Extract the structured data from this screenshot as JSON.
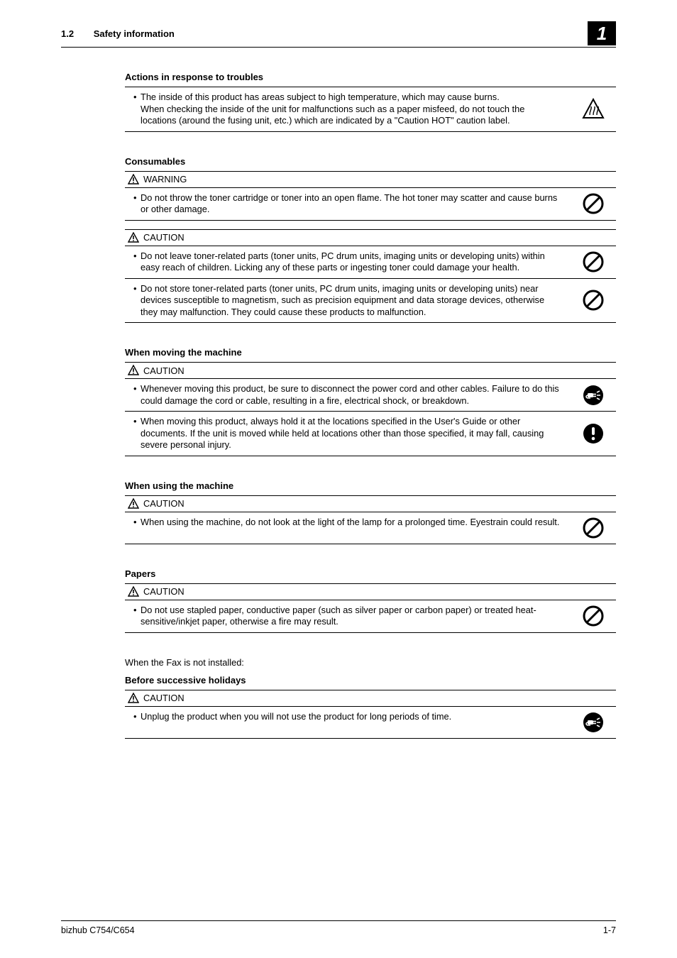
{
  "header": {
    "section_number": "1.2",
    "section_title": "Safety information",
    "chapter_number": "1"
  },
  "icons": {
    "prohibit_stroke": "#000000",
    "mandatory_fill": "#000000",
    "hot_stroke": "#000000"
  },
  "blocks": [
    {
      "title": "Actions in response to troubles",
      "sub": null,
      "rows": [
        {
          "text": "The inside of this product has areas subject to high temperature, which may cause burns.\nWhen checking the inside of the unit for malfunctions such as a paper misfeed, do not touch the locations (around the fusing unit, etc.) which are indicated by a \"Caution HOT\" caution label.",
          "icon": "hot"
        }
      ]
    },
    {
      "title": "Consumables",
      "sub": "WARNING",
      "rows": [
        {
          "text": "Do not throw the toner cartridge or toner into an open flame. The hot toner may scatter and cause burns or other damage.",
          "icon": "prohibit"
        }
      ],
      "extra_sub": "CAUTION",
      "extra_rows": [
        {
          "text": "Do not leave toner-related parts (toner units, PC drum units, imaging units or developing units) within easy reach of children. Licking any of these parts or ingesting toner could damage your health.",
          "icon": "prohibit"
        },
        {
          "text": "Do not store toner-related parts (toner units, PC drum units, imaging units or developing units) near devices susceptible to magnetism, such as precision equipment and data storage devices, otherwise they may malfunction. They could cause these products to malfunction.",
          "icon": "prohibit"
        }
      ]
    },
    {
      "title": "When moving the machine",
      "sub": "CAUTION",
      "rows": [
        {
          "text": "Whenever moving this product, be sure to disconnect the power cord and other cables. Failure to do this could damage the cord or cable, resulting in a fire, electrical shock, or breakdown.",
          "icon": "unplug"
        },
        {
          "text": "When moving this product, always hold it at the locations specified in the User's Guide or other documents. If the unit is moved while held at locations other than those specified, it may fall, causing severe personal injury.",
          "icon": "mandatory"
        }
      ]
    },
    {
      "title": "When using the machine",
      "sub": "CAUTION",
      "rows": [
        {
          "text": "When using the machine, do not look at the light of the lamp for a prolonged time. Eyestrain could result.",
          "icon": "prohibit"
        }
      ]
    },
    {
      "title": "Papers",
      "sub": "CAUTION",
      "rows": [
        {
          "text": "Do not use stapled paper, conductive paper (such as silver paper or carbon paper) or treated heat-sensitive/inkjet paper, otherwise a fire may result.",
          "icon": "prohibit"
        }
      ]
    }
  ],
  "note_text": "When the Fax is not installed:",
  "tail_block": {
    "title": "Before successive holidays",
    "sub": "CAUTION",
    "rows": [
      {
        "text": "Unplug the product when you will not use the product for long periods of time.",
        "icon": "unplug"
      }
    ]
  },
  "footer": {
    "left": "bizhub C754/C654",
    "right": "1-7"
  }
}
